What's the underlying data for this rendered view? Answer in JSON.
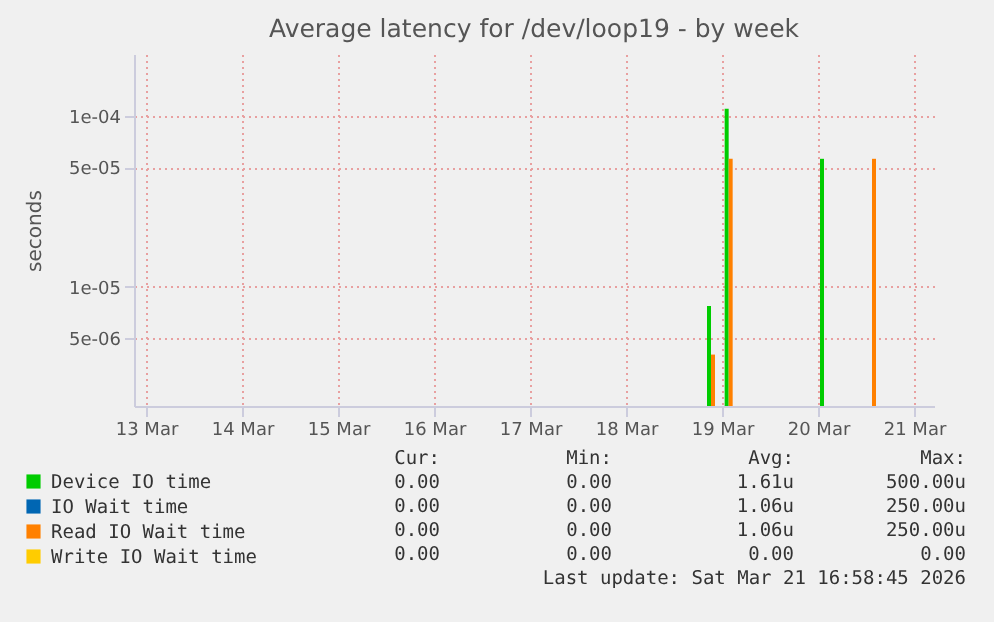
{
  "chart_data": {
    "type": "bar",
    "title": "Average latency for /dev/loop19 - by week",
    "ylabel": "seconds",
    "xlim": [
      "2026-03-12T21:00",
      "2026-03-21T05:00"
    ],
    "xticks": [
      {
        "value": "2026-03-13",
        "label": "13 Mar"
      },
      {
        "value": "2026-03-14",
        "label": "14 Mar"
      },
      {
        "value": "2026-03-15",
        "label": "15 Mar"
      },
      {
        "value": "2026-03-16",
        "label": "16 Mar"
      },
      {
        "value": "2026-03-17",
        "label": "17 Mar"
      },
      {
        "value": "2026-03-18",
        "label": "18 Mar"
      },
      {
        "value": "2026-03-19",
        "label": "19 Mar"
      },
      {
        "value": "2026-03-20",
        "label": "20 Mar"
      },
      {
        "value": "2026-03-21",
        "label": "21 Mar"
      }
    ],
    "log": "y",
    "ylim": [
      2e-06,
      0.00023
    ],
    "yticks": [
      {
        "value": 5e-06,
        "label": "5e-06"
      },
      {
        "value": 1e-05,
        "label": "1e-05"
      },
      {
        "value": 5e-05,
        "label": "5e-05"
      },
      {
        "value": 0.0001,
        "label": "1e-04"
      }
    ],
    "grid": true,
    "legend": "bottom left",
    "series": [
      {
        "name": "Device IO time",
        "color": "#00cc00",
        "x": [
          "2026-03-18T21:15",
          "2026-03-19T01:40",
          "2026-03-20T01:30"
        ],
        "values": [
          7.7e-06,
          0.00011,
          5.6e-05
        ]
      },
      {
        "name": "IO Wait time",
        "color": "#0066b3"
      },
      {
        "name": "Read IO Wait time",
        "color": "#ff8000",
        "x": [
          "2026-03-18T21:15",
          "2026-03-19T01:40",
          "2026-03-20T13:30"
        ],
        "values": [
          4e-06,
          5.6e-05,
          5.6e-05
        ]
      },
      {
        "name": "Write IO Wait time",
        "color": "#ffcc00"
      }
    ],
    "annotations": [
      "Cur:",
      "Min:",
      "Avg:",
      "Max:",
      "0.00",
      "0.00",
      "1.61u",
      "500.00u",
      "0.00",
      "0.00",
      "1.06u",
      "250.00u",
      "0.00",
      "0.00",
      "1.06u",
      "250.00u",
      "0.00",
      "0.00",
      "0.00",
      "0.00",
      "Last update: Sat Mar 21 16:58:45 2026"
    ]
  }
}
